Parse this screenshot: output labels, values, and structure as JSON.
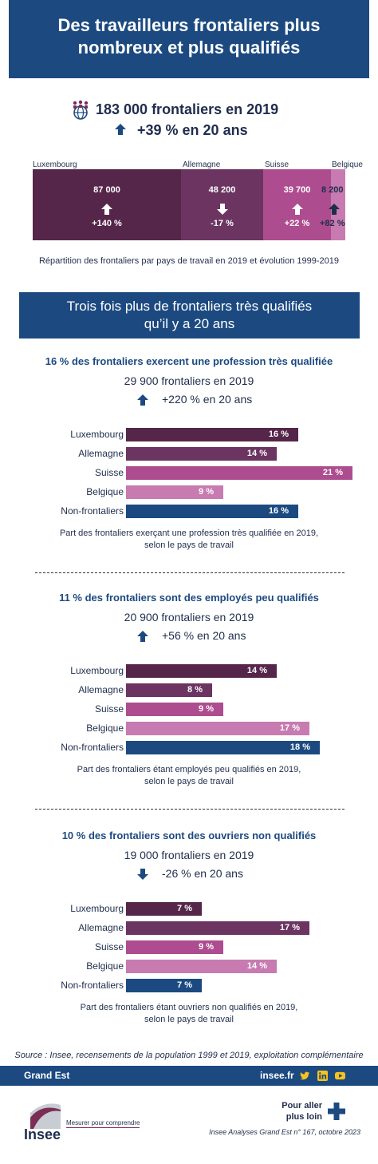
{
  "header": {
    "title_line1": "Des travailleurs frontaliers plus",
    "title_line2": "nombreux et plus qualifiés"
  },
  "kpi": {
    "total": "183 000 frontaliers en 2019",
    "growth": "+39 % en 20 ans"
  },
  "countries": [
    {
      "name": "Luxembourg",
      "value": "87 000",
      "evolution": "+140 %",
      "direction": "up",
      "color": "#55264a",
      "share": 0.475
    },
    {
      "name": "Allemagne",
      "value": "48 200",
      "evolution": "-17 %",
      "direction": "down",
      "color": "#6b3461",
      "share": 0.263
    },
    {
      "name": "Suisse",
      "value": "39 700",
      "evolution": "+22 %",
      "direction": "up",
      "color": "#ad4d8f",
      "share": 0.217
    },
    {
      "name": "Belgique",
      "value": "8 200",
      "evolution": "+82 %",
      "direction": "up",
      "color": "#c77bb0",
      "share": 0.045
    }
  ],
  "main_caption": "Répartition des frontaliers par pays de travail en 2019 et évolution 1999-2019",
  "band": {
    "line1": "Trois fois plus de frontaliers très qualifiés",
    "line2": "qu’il y a 20 ans"
  },
  "sections": [
    {
      "title": "16 % des frontaliers exercent une profession très qualifiée",
      "count": "29 900 frontaliers en 2019",
      "growth": "+220 % en 20 ans",
      "direction": "up",
      "caption1": "Part des frontaliers exerçant une profession très qualifiée en 2019,",
      "caption2": "selon le pays de travail",
      "chart_data": {
        "type": "bar",
        "categories": [
          "Luxembourg",
          "Allemagne",
          "Suisse",
          "Belgique",
          "Non-frontaliers"
        ],
        "values": [
          16,
          14,
          21,
          9,
          16
        ],
        "value_labels": [
          "16 %",
          "14 %",
          "21 %",
          "9 %",
          "16 %"
        ]
      }
    },
    {
      "title": "11 % des frontaliers sont des employés peu qualifiés",
      "count": "20 900 frontaliers en 2019",
      "growth": "+56 % en 20 ans",
      "direction": "up",
      "caption1": "Part des frontaliers étant employés peu qualifiés en 2019,",
      "caption2": "selon le pays de travail",
      "chart_data": {
        "type": "bar",
        "categories": [
          "Luxembourg",
          "Allemagne",
          "Suisse",
          "Belgique",
          "Non-frontaliers"
        ],
        "values": [
          14,
          8,
          9,
          17,
          18
        ],
        "value_labels": [
          "14 %",
          "8 %",
          "9 %",
          "17 %",
          "18 %"
        ]
      }
    },
    {
      "title": "10 % des frontaliers sont des ouvriers non qualifiés",
      "count": "19 000 frontaliers en 2019",
      "growth": "-26 % en 20 ans",
      "direction": "down",
      "caption1": "Part des frontaliers étant ouvriers non qualifiés en 2019,",
      "caption2": "selon le pays de travail",
      "chart_data": {
        "type": "bar",
        "categories": [
          "Luxembourg",
          "Allemagne",
          "Suisse",
          "Belgique",
          "Non-frontaliers"
        ],
        "values": [
          7,
          17,
          9,
          14,
          7
        ],
        "value_labels": [
          "7 %",
          "17 %",
          "9 %",
          "14 %",
          "7 %"
        ]
      }
    }
  ],
  "bar_colors": [
    "#55264a",
    "#6b3461",
    "#ad4d8f",
    "#c77bb0",
    "#1c4a80"
  ],
  "source": "Source : Insee, recensements de la population 1999 et 2019, exploitation complémentaire",
  "footer": {
    "region": "Grand Est",
    "site": "insee.fr"
  },
  "bottom": {
    "logo_text": "Insee",
    "tagline": "Mesurer pour comprendre",
    "more_line1": "Pour aller",
    "more_line2": "plus loin",
    "publication": "Insee Analyses Grand Est n° 167, octobre 2023"
  }
}
